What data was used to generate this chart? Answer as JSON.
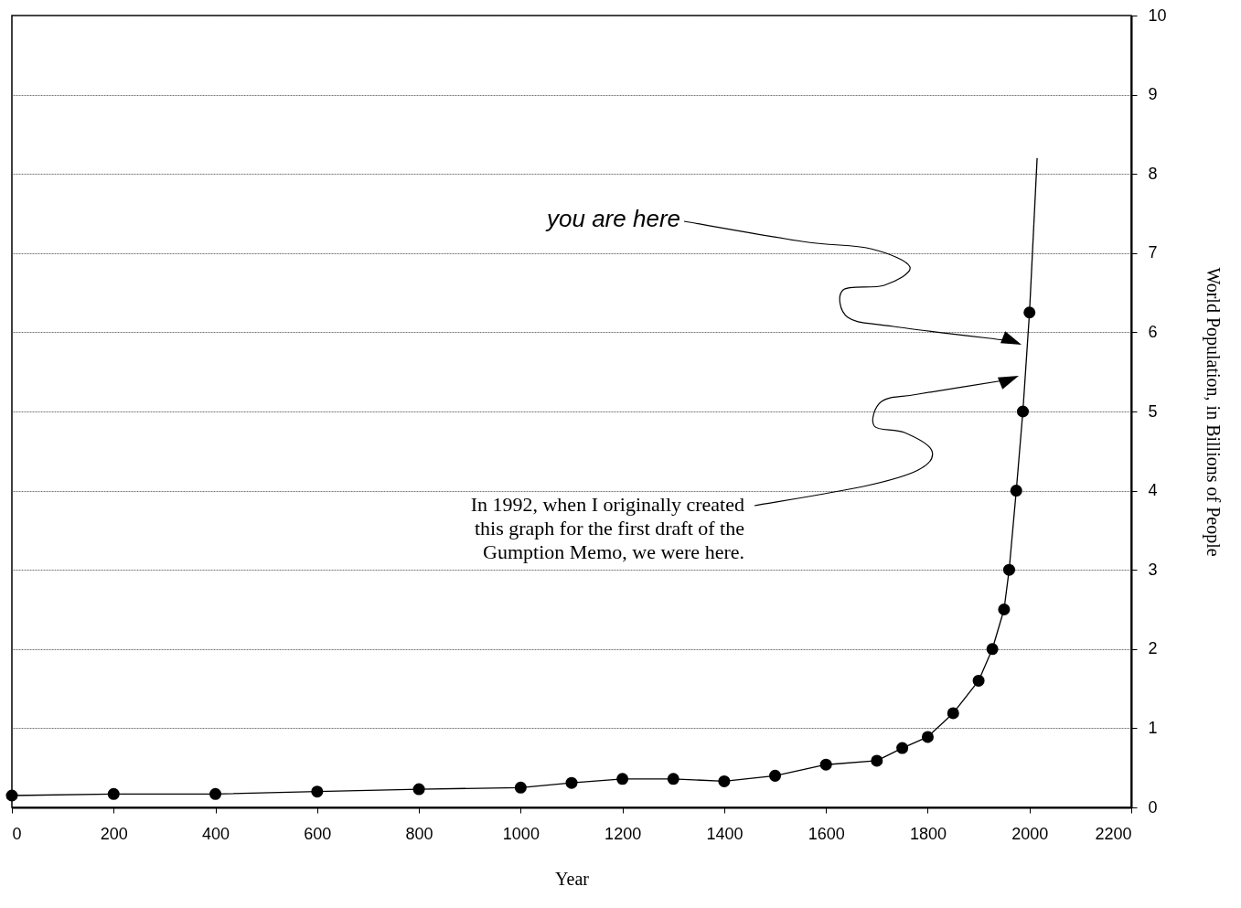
{
  "chart_data": {
    "type": "line",
    "xlabel": "Year",
    "ylabel": "World Population, in Billions of People",
    "x": [
      0,
      200,
      400,
      600,
      800,
      1000,
      1100,
      1200,
      1300,
      1400,
      1500,
      1600,
      1700,
      1750,
      1800,
      1850,
      1900,
      1927,
      1950,
      1960,
      1974,
      1987,
      2000
    ],
    "series": [
      {
        "color": "#000000",
        "marker": "circle",
        "values": [
          0.15,
          0.17,
          0.17,
          0.2,
          0.23,
          0.25,
          0.31,
          0.36,
          0.36,
          0.33,
          0.4,
          0.54,
          0.59,
          0.75,
          0.89,
          1.19,
          1.6,
          2.0,
          2.5,
          3.0,
          4.0,
          5.0,
          6.25
        ]
      },
      {
        "type": "line",
        "color": "#000000",
        "marker": "none",
        "x": [
          2000,
          2015
        ],
        "values": [
          6.25,
          8.2
        ]
      }
    ],
    "xlim": [
      0,
      2200
    ],
    "xticks": [
      0,
      200,
      400,
      600,
      800,
      1000,
      1200,
      1400,
      1600,
      1800,
      2000,
      2200
    ],
    "ylim": [
      0,
      10
    ],
    "yticks": [
      0,
      1,
      2,
      3,
      4,
      5,
      6,
      7,
      8,
      9,
      10
    ],
    "grid": "y",
    "annotations": [
      "you are here",
      "In 1992, when I originally created this graph for the first draft of the Gumption Memo, we were here."
    ]
  }
}
